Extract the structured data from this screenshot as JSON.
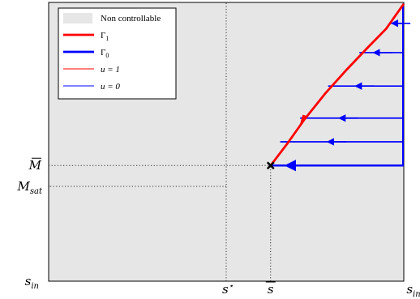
{
  "chart_data": {
    "type": "line",
    "axes": {
      "grid": false,
      "background_color": "#e6e6e6"
    },
    "y_tick_labels": [
      {
        "base": "M",
        "overline": true,
        "sub": ""
      },
      {
        "base": "M",
        "overline": false,
        "sub": "sat"
      },
      {
        "base": "s",
        "overline": false,
        "sub": "in"
      }
    ],
    "x_tick_labels": [
      {
        "base": "s",
        "sup": "⋆",
        "overline": false,
        "sub": ""
      },
      {
        "base": "s",
        "sup": "",
        "overline": true,
        "sub": ""
      },
      {
        "base": "s",
        "sup": "",
        "overline": false,
        "sub": "in"
      }
    ],
    "legend": {
      "placement": "top-left",
      "entries": [
        {
          "label": "Non controllable",
          "kind": "patch",
          "color": "#e6e6e6"
        },
        {
          "label": "Γ",
          "sub": "1",
          "kind": "thick-line",
          "color": "#ff0000"
        },
        {
          "label": "Γ",
          "sub": "0",
          "kind": "thick-line",
          "color": "#0000ff"
        },
        {
          "label": "u = 1",
          "kind": "thin-line",
          "color": "#ff0000"
        },
        {
          "label": "u = 0",
          "kind": "thin-line",
          "color": "#0000ff"
        }
      ]
    },
    "series": [
      {
        "name": "Γ1",
        "color": "#ff0000",
        "x": [
          0.625,
          0.67,
          0.72,
          0.78,
          0.84,
          0.9,
          0.95,
          1.0
        ],
        "y": [
          0.415,
          0.49,
          0.58,
          0.675,
          0.76,
          0.84,
          0.905,
          0.995
        ]
      },
      {
        "name": "Γ0",
        "color": "#0000ff",
        "x": [
          0.625,
          1.0
        ],
        "y": [
          0.415,
          0.415
        ]
      }
    ],
    "trajectories_u0": [
      {
        "y": 0.5,
        "x_start": 1.0,
        "x_end": 0.652
      },
      {
        "y": 0.585,
        "x_start": 1.0,
        "x_end": 0.708
      },
      {
        "y": 0.7,
        "x_start": 1.0,
        "x_end": 0.787
      },
      {
        "y": 0.82,
        "x_start": 1.0,
        "x_end": 0.875
      },
      {
        "y": 0.925,
        "x_start": 1.0,
        "x_end": 0.963
      }
    ],
    "vertical_edge": {
      "x": 1.0,
      "y_from": 0.415,
      "y_to": 0.995,
      "color": "#0000ff"
    },
    "marker": {
      "x": 0.625,
      "y": 0.415,
      "symbol": "×"
    },
    "reference_lines": [
      {
        "orientation": "horizontal",
        "at": 0.415,
        "from": 0,
        "to": 0.625
      },
      {
        "orientation": "horizontal",
        "at": 0.34,
        "from": 0,
        "to": 0.5
      },
      {
        "orientation": "vertical",
        "at": 0.5,
        "from": 0,
        "to": 1
      },
      {
        "orientation": "vertical",
        "at": 0.625,
        "from": 0,
        "to": 0.415
      }
    ]
  }
}
